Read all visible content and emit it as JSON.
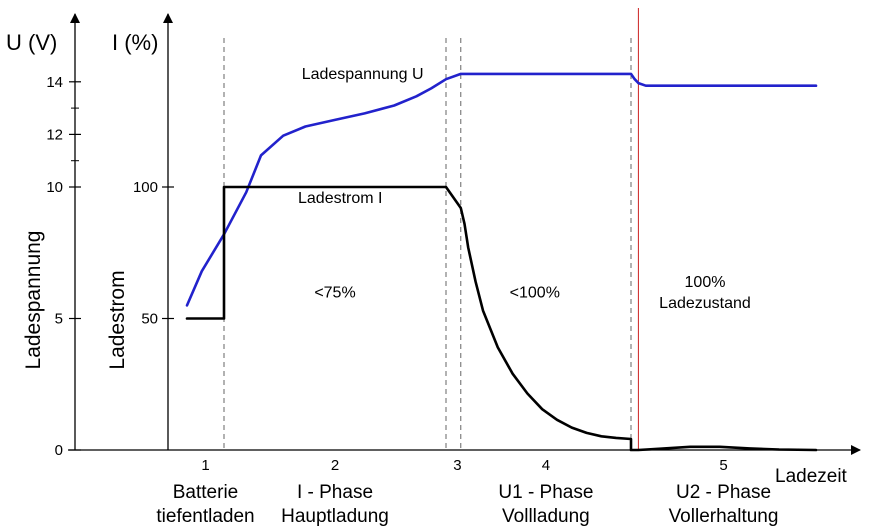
{
  "chart_data": {
    "type": "line",
    "axes": {
      "voltage": {
        "title": "U (V)",
        "rotated_label": "Ladespannung",
        "ticks": [
          0,
          5,
          10,
          12,
          14
        ]
      },
      "current": {
        "title": "I (%)",
        "rotated_label": "Ladestrom",
        "ticks": [
          50,
          100
        ]
      },
      "x": {
        "label": "Ladezeit"
      }
    },
    "phases": [
      {
        "number": "1",
        "line1": "Batterie",
        "line2": "tiefentladen",
        "start": 0.0,
        "end": 0.5
      },
      {
        "number": "2",
        "line1": "I - Phase",
        "line2": "Hauptladung",
        "start": 0.5,
        "end": 3.5
      },
      {
        "number": "3",
        "line1": "",
        "line2": "",
        "start": 3.5,
        "end": 3.7
      },
      {
        "number": "4",
        "line1": "U1 - Phase",
        "line2": "Vollladung",
        "start": 3.7,
        "end": 6.0
      },
      {
        "number": "5",
        "line1": "U2 - Phase",
        "line2": "Vollerhaltung",
        "start": 6.0,
        "end": 8.5
      }
    ],
    "phase_boundaries": [
      0.5,
      3.5,
      3.7,
      6.0
    ],
    "full_charge_marker": 6.1,
    "annotations": [
      {
        "text": "<75%",
        "x": 2.0,
        "y_voltage": 5.8
      },
      {
        "text": "<100%",
        "x": 4.7,
        "y_voltage": 5.8
      },
      {
        "text": "100%",
        "x": 7.0,
        "y_voltage": 6.2
      },
      {
        "text": "Ladezustand",
        "x": 7.0,
        "y_voltage": 5.4
      }
    ],
    "series": [
      {
        "name": "Ladespannung U",
        "axis": "voltage",
        "color": "#2222cc",
        "label_x": 1.55,
        "label_y": 14.1,
        "x": [
          0.0,
          0.2,
          0.5,
          0.8,
          1.0,
          1.3,
          1.6,
          2.0,
          2.4,
          2.8,
          3.1,
          3.3,
          3.5,
          3.7,
          4.5,
          5.5,
          6.0,
          6.05,
          6.1,
          6.2,
          7.0,
          8.0,
          8.5
        ],
        "y": [
          5.5,
          6.8,
          8.2,
          9.8,
          11.2,
          11.95,
          12.3,
          12.55,
          12.8,
          13.1,
          13.45,
          13.75,
          14.1,
          14.3,
          14.3,
          14.3,
          14.3,
          14.1,
          13.95,
          13.85,
          13.85,
          13.85,
          13.85
        ]
      },
      {
        "name": "Ladestrom I",
        "axis": "voltage",
        "color": "#000000",
        "label_x": 1.5,
        "label_y": 9.4,
        "x": [
          0.0,
          0.5,
          0.5,
          3.5,
          3.7,
          3.75,
          3.8,
          3.9,
          4.0,
          4.2,
          4.4,
          4.6,
          4.8,
          5.0,
          5.2,
          5.4,
          5.6,
          5.8,
          6.0,
          6.0,
          6.1,
          6.4,
          6.8,
          7.2,
          7.6,
          8.0,
          8.5
        ],
        "y": [
          5.0,
          5.0,
          10.0,
          10.0,
          9.2,
          8.6,
          7.7,
          6.4,
          5.3,
          3.9,
          2.9,
          2.15,
          1.55,
          1.15,
          0.85,
          0.65,
          0.52,
          0.46,
          0.42,
          0.0,
          0.0,
          0.05,
          0.12,
          0.12,
          0.06,
          0.02,
          0.0
        ]
      }
    ]
  }
}
